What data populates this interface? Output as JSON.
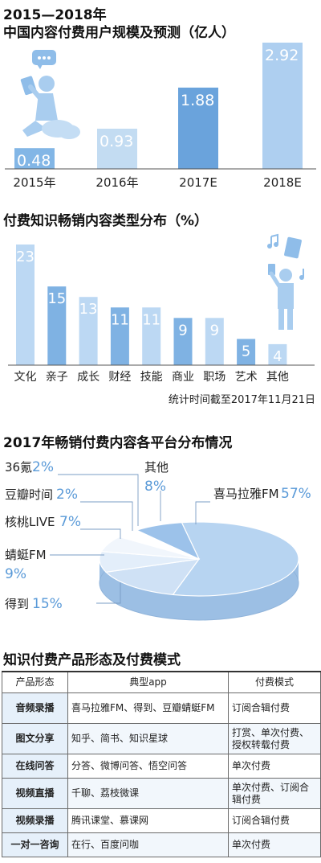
{
  "chart_data": [
    {
      "type": "bar",
      "title": "2015—2018年",
      "subtitle": "中国内容付费用户规模及预测（亿人）",
      "categories": [
        "2015年",
        "2016年",
        "2017E",
        "2018E"
      ],
      "values": [
        0.48,
        0.93,
        1.88,
        2.92
      ],
      "value_labels": [
        "0.48",
        "0.93",
        "1.88",
        "2.92"
      ],
      "colors": [
        "#82b6e6",
        "#c3dcf2",
        "#6aa3dc",
        "#aecff0"
      ],
      "icon": "person-reading-tablet-illustration",
      "grid": false,
      "legend": "none"
    },
    {
      "type": "bar",
      "title": "付费知识畅销内容类型分布（%）",
      "categories": [
        "文化",
        "亲子",
        "成长",
        "财经",
        "技能",
        "商业",
        "职场",
        "艺术",
        "其他"
      ],
      "values": [
        23,
        15,
        13,
        11,
        11,
        9,
        9,
        5,
        4
      ],
      "value_labels": [
        "23",
        "15",
        "13",
        "11",
        "11",
        "9",
        "9",
        "5",
        "4"
      ],
      "colors": [
        "#bcd8f3",
        "#7fb2e3",
        "#bcd8f3",
        "#7fb2e3",
        "#bcd8f3",
        "#7fb2e3",
        "#bcd8f3",
        "#7fb2e3",
        "#bcd8f3"
      ],
      "note": "统计时间截至2017年11月21日",
      "icon": "person-with-tablet-music-illustration",
      "grid": false,
      "legend": "none"
    },
    {
      "type": "pie",
      "title": "2017年畅销付费内容各平台分布情况",
      "slices": [
        {
          "name": "喜马拉雅FM",
          "value": 57,
          "pct": "57%"
        },
        {
          "name": "得到",
          "value": 15,
          "pct": "15%"
        },
        {
          "name": "蜻蜓FM",
          "value": 9,
          "pct": "9%"
        },
        {
          "name": "核桃LIVE",
          "value": 7,
          "pct": "7%"
        },
        {
          "name": "豆瓣时间",
          "value": 2,
          "pct": "2%"
        },
        {
          "name": "36氪",
          "value": 2,
          "pct": "2%"
        },
        {
          "name": "其他",
          "value": 8,
          "pct": "8%"
        }
      ],
      "colors": [
        "#b7d4f1",
        "#cfe1f5",
        "#e3eefa",
        "#f1f6fc",
        "#ffffff",
        "#ffffff",
        "#9cc2ea"
      ],
      "legend": "callout-labels"
    },
    {
      "type": "table",
      "title": "知识付费产品形态及付费模式",
      "columns": [
        "产品形态",
        "典型app",
        "付费模式"
      ],
      "rows": [
        [
          "音频录播",
          "喜马拉雅FM、得到、豆瓣蜻蜓FM",
          "订阅合辑付费"
        ],
        [
          "图文分享",
          "知乎、简书、知识星球",
          "打赏、单次付费、授权转载付费"
        ],
        [
          "在线问答",
          "分答、微博问答、悟空问答",
          "单次付费"
        ],
        [
          "视频直播",
          "千聊、荔枝微课",
          "单次付费、订阅合辑付费"
        ],
        [
          "视频录播",
          "腾讯课堂、慕课网",
          "订阅合辑付费"
        ],
        [
          "一对一咨询",
          "在行、百度问咖",
          "单次付费"
        ]
      ]
    }
  ]
}
